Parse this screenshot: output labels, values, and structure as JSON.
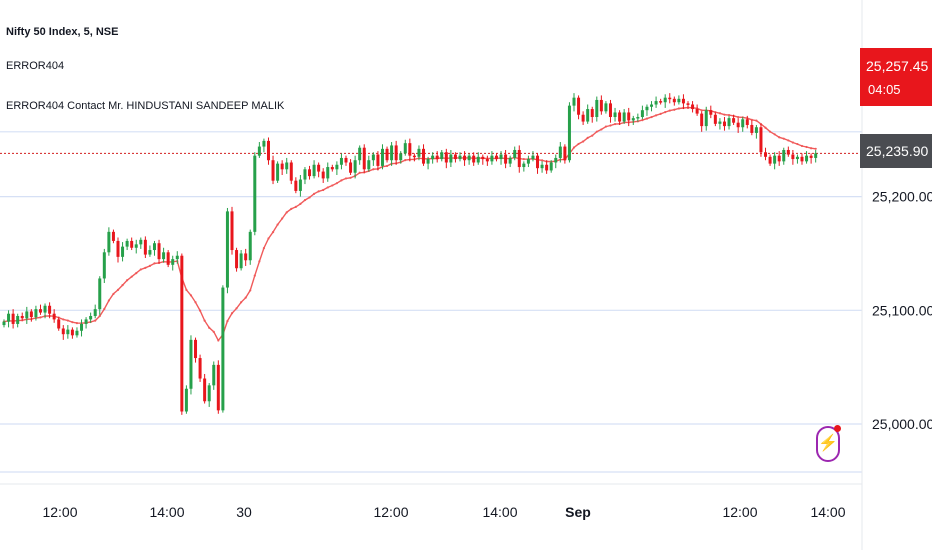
{
  "legend": {
    "symbol": "Nifty 50 Index, 5, NSE",
    "indicator1": "ERROR404",
    "indicator2": "ERROR404 Contact Mr. HINDUSTANI SANDEEP MALIK"
  },
  "price_tag": {
    "price": "25,257.45",
    "countdown": "04:05",
    "color": "#e8161c"
  },
  "last_tag": {
    "price": "25,235.90",
    "color": "#4a4c51"
  },
  "colors": {
    "up": "#26a04a",
    "down": "#e8161c",
    "ma": "#f05a5a",
    "grid": "#d6e0f5",
    "dotted": "#d21f1f"
  },
  "chart_data": {
    "type": "candlestick",
    "y_axis": {
      "ticks": [
        25000,
        25100,
        25200
      ],
      "tick_labels": [
        "25,000.00",
        "25,100.00",
        "25,200.00"
      ]
    },
    "x_axis": {
      "tick_labels": [
        "12:00",
        "14:00",
        "30",
        "12:00",
        "14:00",
        "Sep",
        "12:00",
        "14:00"
      ]
    },
    "reference_line": 25238,
    "series": [
      {
        "name": "close",
        "values": [
          25090,
          25097,
          25088,
          25095,
          25093,
          25099,
          25094,
          25101,
          25098,
          25104,
          25097,
          25092,
          25084,
          25079,
          25083,
          25078,
          25082,
          25088,
          25092,
          25095,
          25101,
          25128,
          25151,
          25169,
          25161,
          25147,
          25156,
          25161,
          25155,
          25158,
          25162,
          25149,
          25153,
          25159,
          25145,
          25151,
          25140,
          25145,
          25148,
          25011,
          25031,
          25074,
          25058,
          25040,
          25020,
          25034,
          25052,
          25012,
          25120,
          25187,
          25153,
          25137,
          25150,
          25144,
          25169,
          25236,
          25244,
          25249,
          25232,
          25214,
          25229,
          25224,
          25230,
          25214,
          25205,
          25215,
          25224,
          25218,
          25228,
          25222,
          25216,
          25226,
          25224,
          25228,
          25234,
          25230,
          25221,
          25232,
          25243,
          25224,
          25232,
          25237,
          25227,
          25242,
          25232,
          25245,
          25232,
          25238,
          25247,
          25236,
          25235,
          25242,
          25229,
          25233,
          25236,
          25233,
          25239,
          25230,
          25237,
          25233,
          25236,
          25232,
          25236,
          25230,
          25235,
          25233,
          25231,
          25236,
          25233,
          25237,
          25229,
          25234,
          25241,
          25226,
          25229,
          25233,
          25236,
          25225,
          25228,
          25223,
          25230,
          25234,
          25244,
          25232,
          25280,
          25287,
          25272,
          25266,
          25277,
          25270,
          25285,
          25275,
          25282,
          25270,
          25274,
          25266,
          25274,
          25267,
          25269,
          25270,
          25276,
          25279,
          25281,
          25284,
          25283,
          25287,
          25286,
          25283,
          25286,
          25282,
          25281,
          25277,
          25273,
          25262,
          25276,
          25272,
          25264,
          25266,
          25262,
          25269,
          25265,
          25261,
          25268,
          25263,
          25256,
          25261,
          25239,
          25235,
          25229,
          25236,
          25231,
          25241,
          25237,
          25233,
          25235,
          25231,
          25236,
          25234,
          25238
        ]
      }
    ]
  }
}
